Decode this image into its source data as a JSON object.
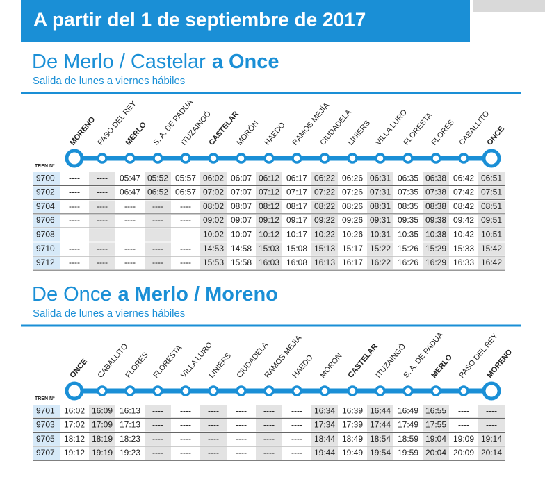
{
  "header": {
    "title": "A partir del 1 de septiembre de 2017"
  },
  "sections": [
    {
      "title_regular": "De Merlo / Castelar",
      "title_bold": "a Once",
      "subtitle": "Salida de lunes a viernes hábiles",
      "train_label": "TREN Nº",
      "stations": [
        {
          "name": "MORENO",
          "bold": true
        },
        {
          "name": "PASO DEL REY",
          "bold": false
        },
        {
          "name": "MERLO",
          "bold": true
        },
        {
          "name": "S. A. DE PADUA",
          "bold": false
        },
        {
          "name": "ITUZAINGÓ",
          "bold": false
        },
        {
          "name": "CASTELAR",
          "bold": true
        },
        {
          "name": "MORÓN",
          "bold": false
        },
        {
          "name": "HAEDO",
          "bold": false
        },
        {
          "name": "RAMOS MEJÍA",
          "bold": false
        },
        {
          "name": "CIUDADELA",
          "bold": false
        },
        {
          "name": "LINIERS",
          "bold": false
        },
        {
          "name": "VILLA LURO",
          "bold": false
        },
        {
          "name": "FLORESTA",
          "bold": false
        },
        {
          "name": "FLORES",
          "bold": false
        },
        {
          "name": "CABALLITO",
          "bold": false
        },
        {
          "name": "ONCE",
          "bold": true
        }
      ],
      "rows": [
        {
          "train": "9700",
          "times": [
            "----",
            "----",
            "05:47",
            "05:52",
            "05:57",
            "06:02",
            "06:07",
            "06:12",
            "06:17",
            "06:22",
            "06:26",
            "06:31",
            "06:35",
            "06:38",
            "06:42",
            "06:51"
          ]
        },
        {
          "train": "9702",
          "times": [
            "----",
            "----",
            "06:47",
            "06:52",
            "06:57",
            "07:02",
            "07:07",
            "07:12",
            "07:17",
            "07:22",
            "07:26",
            "07:31",
            "07:35",
            "07:38",
            "07:42",
            "07:51"
          ]
        },
        {
          "train": "9704",
          "times": [
            "----",
            "----",
            "----",
            "----",
            "----",
            "08:02",
            "08:07",
            "08:12",
            "08:17",
            "08:22",
            "08:26",
            "08:31",
            "08:35",
            "08:38",
            "08:42",
            "08:51"
          ]
        },
        {
          "train": "9706",
          "times": [
            "----",
            "----",
            "----",
            "----",
            "----",
            "09:02",
            "09:07",
            "09:12",
            "09:17",
            "09:22",
            "09:26",
            "09:31",
            "09:35",
            "09:38",
            "09:42",
            "09:51"
          ]
        },
        {
          "train": "9708",
          "times": [
            "----",
            "----",
            "----",
            "----",
            "----",
            "10:02",
            "10:07",
            "10:12",
            "10:17",
            "10:22",
            "10:26",
            "10:31",
            "10:35",
            "10:38",
            "10:42",
            "10:51"
          ]
        },
        {
          "train": "9710",
          "times": [
            "----",
            "----",
            "----",
            "----",
            "----",
            "14:53",
            "14:58",
            "15:03",
            "15:08",
            "15:13",
            "15:17",
            "15:22",
            "15:26",
            "15:29",
            "15:33",
            "15:42"
          ]
        },
        {
          "train": "9712",
          "times": [
            "----",
            "----",
            "----",
            "----",
            "----",
            "15:53",
            "15:58",
            "16:03",
            "16:08",
            "16:13",
            "16:17",
            "16:22",
            "16:26",
            "16:29",
            "16:33",
            "16:42"
          ]
        }
      ]
    },
    {
      "title_regular": "De Once",
      "title_bold": "a Merlo / Moreno",
      "subtitle": "Salida de lunes a viernes hábiles",
      "train_label": "TREN Nº",
      "stations": [
        {
          "name": "ONCE",
          "bold": true
        },
        {
          "name": "CABALLITO",
          "bold": false
        },
        {
          "name": "FLORES",
          "bold": false
        },
        {
          "name": "FLORESTA",
          "bold": false
        },
        {
          "name": "VILLA LURO",
          "bold": false
        },
        {
          "name": "LINIERS",
          "bold": false
        },
        {
          "name": "CIUDADELA",
          "bold": false
        },
        {
          "name": "RAMOS MEJÍA",
          "bold": false
        },
        {
          "name": "HAEDO",
          "bold": false
        },
        {
          "name": "MORÓN",
          "bold": false
        },
        {
          "name": "CASTELAR",
          "bold": true
        },
        {
          "name": "ITUZAINGÓ",
          "bold": false
        },
        {
          "name": "S. A. DE PADUA",
          "bold": false
        },
        {
          "name": "MERLO",
          "bold": true
        },
        {
          "name": "PASO DEL REY",
          "bold": false
        },
        {
          "name": "MORENO",
          "bold": true
        }
      ],
      "rows": [
        {
          "train": "9701",
          "times": [
            "16:02",
            "16:09",
            "16:13",
            "----",
            "----",
            "----",
            "----",
            "----",
            "----",
            "16:34",
            "16:39",
            "16:44",
            "16:49",
            "16:55",
            "----",
            "----"
          ]
        },
        {
          "train": "9703",
          "times": [
            "17:02",
            "17:09",
            "17:13",
            "----",
            "----",
            "----",
            "----",
            "----",
            "----",
            "17:34",
            "17:39",
            "17:44",
            "17:49",
            "17:55",
            "----",
            "----"
          ]
        },
        {
          "train": "9705",
          "times": [
            "18:12",
            "18:19",
            "18:23",
            "----",
            "----",
            "----",
            "----",
            "----",
            "----",
            "18:44",
            "18:49",
            "18:54",
            "18:59",
            "19:04",
            "19:09",
            "19:14"
          ]
        },
        {
          "train": "9707",
          "times": [
            "19:12",
            "19:19",
            "19:23",
            "----",
            "----",
            "----",
            "----",
            "----",
            "----",
            "19:44",
            "19:49",
            "19:54",
            "19:59",
            "20:04",
            "20:09",
            "20:14"
          ]
        }
      ]
    }
  ]
}
